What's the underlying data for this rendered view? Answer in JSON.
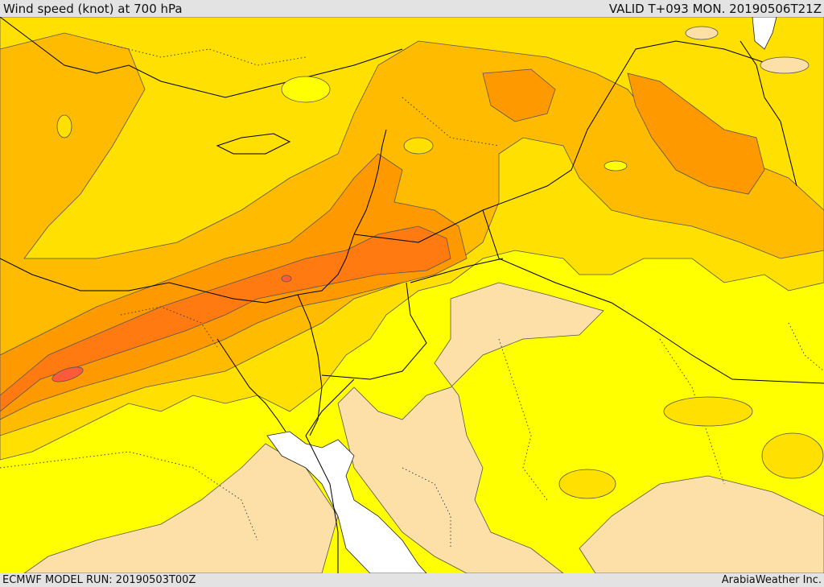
{
  "header": {
    "title": "Wind speed (knot) at 700 hPa",
    "valid_time": "VALID T+093 MON. 20190506T21Z"
  },
  "footer": {
    "model_run": "ECMWF MODEL RUN: 20190503T00Z",
    "credit": "ArabiaWeather Inc."
  },
  "map": {
    "fill_colors": {
      "lowest": "#fde0a8",
      "low": "#ffff00",
      "moderate": "#ffe000",
      "elevated": "#ffbb00",
      "high": "#ff9900",
      "higher": "#ff7a10",
      "highest": "#ff5a3a",
      "water_white": "#ffffff"
    },
    "line_colors": {
      "contour": "#555555",
      "coast_and_border": "#000000"
    }
  }
}
